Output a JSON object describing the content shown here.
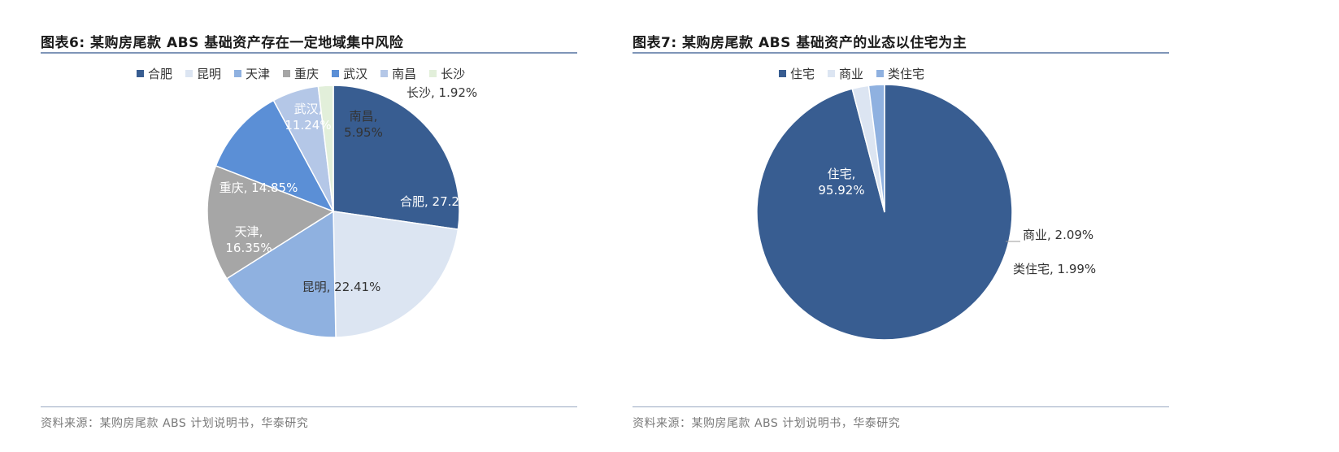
{
  "chart_data": [
    {
      "type": "pie",
      "title": "图表6:  某购房尾款 ABS 基础资产存在一定地域集中风险",
      "source": "资料来源：某购房尾款 ABS 计划说明书，华泰研究",
      "legend_position": "top",
      "slices": [
        {
          "name": "合肥",
          "value": 27.28,
          "label": "合肥, 27.28%",
          "color": "#385d91",
          "label_color": "#ffffff"
        },
        {
          "name": "昆明",
          "value": 22.41,
          "label": "昆明, 22.41%",
          "color": "#dce5f2",
          "label_color": "#333333"
        },
        {
          "name": "天津",
          "value": 16.35,
          "label_lines": [
            "天津,",
            "16.35%"
          ],
          "color": "#8fb1e0",
          "label_color": "#ffffff"
        },
        {
          "name": "重庆",
          "value": 14.85,
          "label": "重庆, 14.85%",
          "color": "#a6a6a6",
          "label_color": "#ffffff"
        },
        {
          "name": "武汉",
          "value": 11.24,
          "label_lines": [
            "武汉,",
            "11.24%"
          ],
          "color": "#5b8fd6",
          "label_color": "#ffffff"
        },
        {
          "name": "南昌",
          "value": 5.95,
          "label_lines": [
            "南昌,",
            "5.95%"
          ],
          "color": "#b4c7e7",
          "label_color": "#333333"
        },
        {
          "name": "长沙",
          "value": 1.92,
          "label": "长沙, 1.92%",
          "color": "#e2efda",
          "label_color": "#333333"
        }
      ]
    },
    {
      "type": "pie",
      "title": "图表7:  某购房尾款 ABS 基础资产的业态以住宅为主",
      "source": "资料来源：某购房尾款 ABS 计划说明书，华泰研究",
      "legend_position": "top",
      "slices": [
        {
          "name": "住宅",
          "value": 95.92,
          "label_lines": [
            "住宅,",
            "95.92%"
          ],
          "color": "#385d91",
          "label_color": "#ffffff"
        },
        {
          "name": "商业",
          "value": 2.09,
          "label": "商业, 2.09%",
          "color": "#dce5f2",
          "label_color": "#333333"
        },
        {
          "name": "类住宅",
          "value": 1.99,
          "label": "类住宅, 1.99%",
          "color": "#8fb1e0",
          "label_color": "#333333"
        }
      ]
    }
  ]
}
